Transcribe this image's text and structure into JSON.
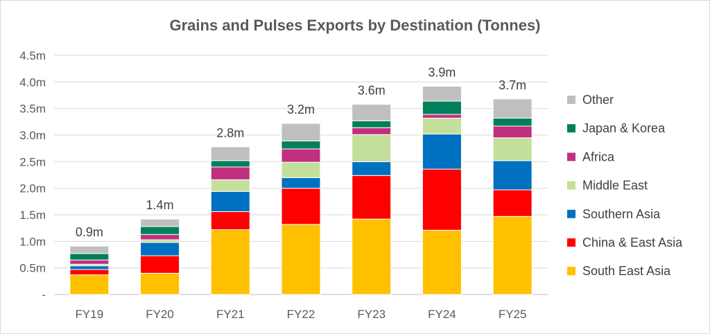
{
  "chart_data": {
    "type": "bar",
    "stacked": true,
    "title": "Grains and Pulses Exports by Destination (Tonnes)",
    "categories": [
      "FY19",
      "FY20",
      "FY21",
      "FY22",
      "FY23",
      "FY24",
      "FY25"
    ],
    "ylim": [
      0,
      4.5
    ],
    "yticks": [
      "-",
      "0.5m",
      "1.0m",
      "1.5m",
      "2.0m",
      "2.5m",
      "3.0m",
      "3.5m",
      "4.0m",
      "4.5m"
    ],
    "grid": true,
    "legend_position": "right",
    "totals": [
      "0.9m",
      "1.4m",
      "2.8m",
      "3.2m",
      "3.6m",
      "3.9m",
      "3.7m"
    ],
    "series": [
      {
        "name": "South East Asia",
        "color": "#ffc000",
        "values": [
          0.37,
          0.4,
          1.22,
          1.32,
          1.42,
          1.21,
          1.47
        ]
      },
      {
        "name": "China & East Asia",
        "color": "#ff0000",
        "values": [
          0.1,
          0.33,
          0.34,
          0.68,
          0.82,
          1.15,
          0.5
        ]
      },
      {
        "name": "Southern Asia",
        "color": "#0070c0",
        "values": [
          0.07,
          0.25,
          0.38,
          0.2,
          0.26,
          0.66,
          0.55
        ]
      },
      {
        "name": "Middle East",
        "color": "#c4df9b",
        "values": [
          0.03,
          0.05,
          0.22,
          0.29,
          0.51,
          0.3,
          0.43
        ]
      },
      {
        "name": "Africa",
        "color": "#c0307f",
        "values": [
          0.08,
          0.1,
          0.24,
          0.25,
          0.13,
          0.07,
          0.22
        ]
      },
      {
        "name": "Japan & Korea",
        "color": "#00805a",
        "values": [
          0.12,
          0.15,
          0.12,
          0.15,
          0.13,
          0.25,
          0.15
        ]
      },
      {
        "name": "Other",
        "color": "#bfbfbf",
        "values": [
          0.14,
          0.14,
          0.26,
          0.33,
          0.31,
          0.28,
          0.36
        ]
      }
    ]
  }
}
